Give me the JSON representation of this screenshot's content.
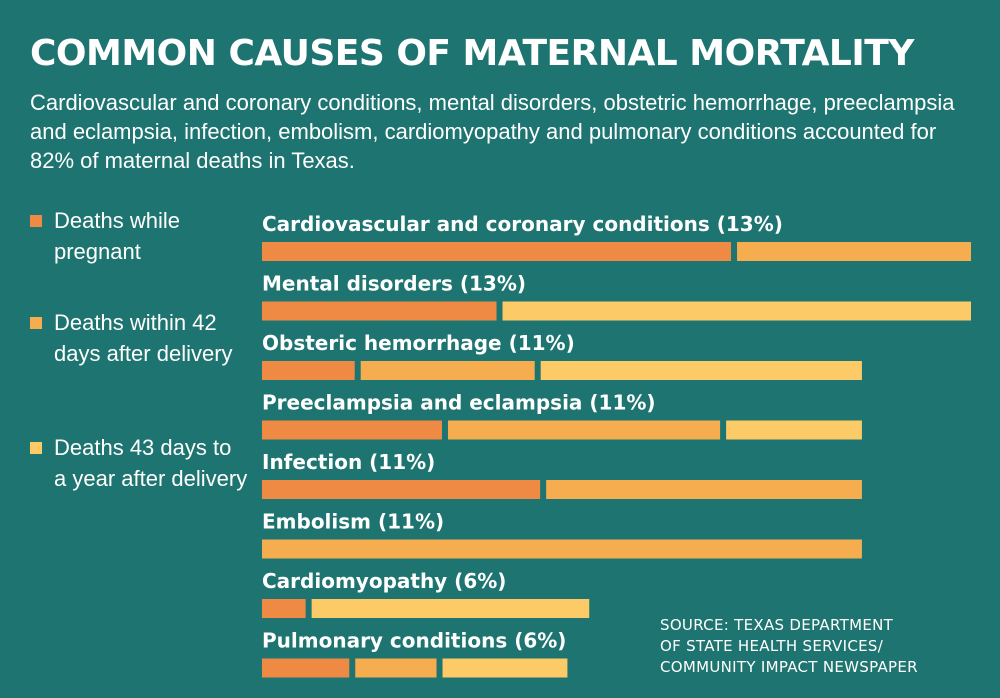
{
  "title": "COMMON CAUSES OF MATERNAL MORTALITY",
  "subtitle": "Cardiovascular and coronary conditions, mental disorders, obstetric hemorrhage, preeclampsia and eclampsia, infection, embolism, cardiomyopathy and pulmonary conditions accounted for 82% of maternal deaths in Texas.",
  "source": [
    "SOURCE: TEXAS DEPARTMENT",
    "OF STATE HEALTH SERVICES/",
    "COMMUNITY IMPACT NEWSPAPER"
  ],
  "colors": {
    "background": "#1e7470",
    "pregnant": "#ef8a45",
    "within_42_days": "#f6ad4f",
    "to_a_year": "#fdca68"
  },
  "chart_data": {
    "type": "bar",
    "orientation": "horizontal",
    "stacked": true,
    "unit": "percent of maternal deaths",
    "legend": "left",
    "grid": false,
    "xlim": [
      0,
      13
    ],
    "categories": [
      "Cardiovascular and coronary conditions (13%)",
      "Mental disorders (13%)",
      "Obsteric hemorrhage (11%)",
      "Preeclampsia and eclampsia (11%)",
      "Infection (11%)",
      "Embolism (11%)",
      "Cardiomyopathy (6%)",
      "Pulmonary conditions (6%)"
    ],
    "series": [
      {
        "name": "Deaths while pregnant",
        "color": "#ef8a45",
        "values": [
          8.6,
          4.3,
          1.7,
          3.3,
          5.1,
          0,
          0.8,
          1.6
        ]
      },
      {
        "name": "Deaths within 42 days after delivery",
        "color": "#f6ad4f",
        "values": [
          4.4,
          0,
          3.3,
          5.1,
          5.9,
          11,
          0,
          1.6
        ]
      },
      {
        "name": "Deaths 43 days to a year after delivery",
        "color": "#fdca68",
        "values": [
          0,
          8.7,
          6.0,
          2.6,
          0,
          0,
          5.2,
          2.4
        ]
      }
    ]
  }
}
